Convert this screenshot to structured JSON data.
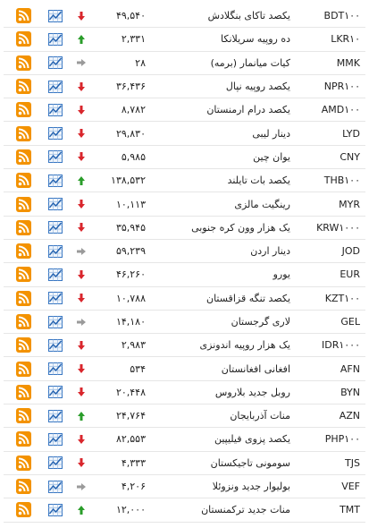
{
  "table": {
    "rows": [
      {
        "code": "BDT۱۰۰",
        "name": "یکصد تاکای بنگلادش",
        "value": "۴۹,۵۴۰",
        "trend": "down"
      },
      {
        "code": "LKR۱۰",
        "name": "ده روپیه سریلانکا",
        "value": "۲,۳۳۱",
        "trend": "up"
      },
      {
        "code": "MMK",
        "name": "کیات میانمار (برمه)",
        "value": "۲۸",
        "trend": "flat"
      },
      {
        "code": "NPR۱۰۰",
        "name": "یکصد روپیه نپال",
        "value": "۳۶,۴۳۶",
        "trend": "down"
      },
      {
        "code": "AMD۱۰۰",
        "name": "یکصد درام ارمنستان",
        "value": "۸,۷۸۲",
        "trend": "down"
      },
      {
        "code": "LYD",
        "name": "دینار لیبی",
        "value": "۲۹,۸۳۰",
        "trend": "down"
      },
      {
        "code": "CNY",
        "name": "یوان چین",
        "value": "۵,۹۸۵",
        "trend": "down"
      },
      {
        "code": "THB۱۰۰",
        "name": "یکصد بات تایلند",
        "value": "۱۳۸,۵۳۲",
        "trend": "up"
      },
      {
        "code": "MYR",
        "name": "رینگیت مالزی",
        "value": "۱۰,۱۱۳",
        "trend": "down"
      },
      {
        "code": "KRW۱۰۰۰",
        "name": "یک هزار وون کره جنوبی",
        "value": "۳۵,۹۴۵",
        "trend": "down"
      },
      {
        "code": "JOD",
        "name": "دینار اردن",
        "value": "۵۹,۲۳۹",
        "trend": "flat"
      },
      {
        "code": "EUR",
        "name": "یورو",
        "value": "۴۶,۲۶۰",
        "trend": "down"
      },
      {
        "code": "KZT۱۰۰",
        "name": "یکصد تنگه قزاقستان",
        "value": "۱۰,۷۸۸",
        "trend": "down"
      },
      {
        "code": "GEL",
        "name": "لاری گرجستان",
        "value": "۱۴,۱۸۰",
        "trend": "flat"
      },
      {
        "code": "IDR۱۰۰۰",
        "name": "یک هزار روپیه اندونزی",
        "value": "۲,۹۸۳",
        "trend": "down"
      },
      {
        "code": "AFN",
        "name": "افغانی افغانستان",
        "value": "۵۳۴",
        "trend": "down"
      },
      {
        "code": "BYN",
        "name": "روبل جدید بلاروس",
        "value": "۲۰,۴۴۸",
        "trend": "down"
      },
      {
        "code": "AZN",
        "name": "منات آذربایجان",
        "value": "۲۴,۷۶۴",
        "trend": "up"
      },
      {
        "code": "PHP۱۰۰",
        "name": "یکصد پزوی فیلیپین",
        "value": "۸۲,۵۵۳",
        "trend": "down"
      },
      {
        "code": "TJS",
        "name": "سومونی تاجیکستان",
        "value": "۴,۳۳۳",
        "trend": "down"
      },
      {
        "code": "VEF",
        "name": "بولیوار جدید ونزوئلا",
        "value": "۴,۲۰۶",
        "trend": "flat"
      },
      {
        "code": "TMT",
        "name": "منات جدید ترکمنستان",
        "value": "۱۲,۰۰۰",
        "trend": "up"
      }
    ]
  }
}
